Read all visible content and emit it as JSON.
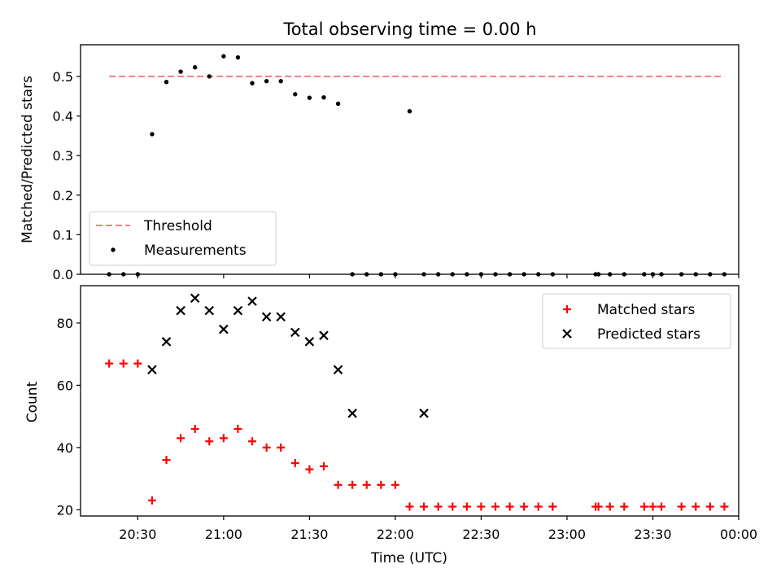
{
  "title": "Total observing time = 0.00 h",
  "chart_data": [
    {
      "type": "scatter",
      "ylabel": "Matched/Predicted stars",
      "xlabel": "",
      "ylim": [
        0,
        0.58
      ],
      "xlim": [
        "20:10",
        "00:00"
      ],
      "yticks": [
        0.0,
        0.1,
        0.2,
        0.3,
        0.4,
        0.5
      ],
      "ytick_labels": [
        "0.0",
        "0.1",
        "0.2",
        "0.3",
        "0.4",
        "0.5"
      ],
      "legend_position": "lower-left",
      "threshold": {
        "name": "Threshold",
        "value": 0.5,
        "x_start": "20:20",
        "x_end": "23:55",
        "color": "#f08080"
      },
      "series": [
        {
          "name": "Measurements",
          "color": "#000000",
          "x": [
            "20:20",
            "20:25",
            "20:30",
            "20:35",
            "20:40",
            "20:45",
            "20:50",
            "20:55",
            "21:00",
            "21:05",
            "21:10",
            "21:15",
            "21:20",
            "21:25",
            "21:30",
            "21:35",
            "21:40",
            "21:45",
            "21:50",
            "21:55",
            "22:00",
            "22:05",
            "22:10",
            "22:15",
            "22:20",
            "22:25",
            "22:30",
            "22:35",
            "22:40",
            "22:45",
            "22:50",
            "22:55",
            "23:10",
            "23:11",
            "23:15",
            "23:20",
            "23:27",
            "23:30",
            "23:33",
            "23:40",
            "23:45",
            "23:50",
            "23:55"
          ],
          "y": [
            0,
            0,
            0,
            0.354,
            0.486,
            0.512,
            0.523,
            0.5,
            0.551,
            0.548,
            0.483,
            0.488,
            0.488,
            0.455,
            0.446,
            0.447,
            0.431,
            0,
            0,
            0,
            0,
            0.412,
            0,
            0,
            0,
            0,
            0,
            0,
            0,
            0,
            0,
            0,
            0,
            0,
            0,
            0,
            0,
            0,
            0,
            0,
            0,
            0,
            0
          ]
        }
      ]
    },
    {
      "type": "scatter",
      "ylabel": "Count",
      "xlabel": "Time (UTC)",
      "ylim": [
        18,
        92
      ],
      "xlim": [
        "20:10",
        "00:00"
      ],
      "yticks": [
        20,
        40,
        60,
        80
      ],
      "ytick_labels": [
        "20",
        "40",
        "60",
        "80"
      ],
      "xticks": [
        "20:30",
        "21:00",
        "21:30",
        "22:00",
        "22:30",
        "23:00",
        "23:30",
        "00:00"
      ],
      "legend_position": "upper-right",
      "series": [
        {
          "name": "Matched stars",
          "marker": "+",
          "color": "#ff0000",
          "x": [
            "20:20",
            "20:25",
            "20:30",
            "20:35",
            "20:40",
            "20:45",
            "20:50",
            "20:55",
            "21:00",
            "21:05",
            "21:10",
            "21:15",
            "21:20",
            "21:25",
            "21:30",
            "21:35",
            "21:40",
            "21:45",
            "21:50",
            "21:55",
            "22:00",
            "22:05",
            "22:10",
            "22:15",
            "22:20",
            "22:25",
            "22:30",
            "22:35",
            "22:40",
            "22:45",
            "22:50",
            "22:55",
            "23:10",
            "23:11",
            "23:15",
            "23:20",
            "23:27",
            "23:30",
            "23:33",
            "23:40",
            "23:45",
            "23:50",
            "23:55"
          ],
          "y": [
            67,
            67,
            67,
            23,
            36,
            43,
            46,
            42,
            43,
            46,
            42,
            40,
            40,
            35,
            33,
            34,
            28,
            28,
            28,
            28,
            28,
            21,
            21,
            21,
            21,
            21,
            21,
            21,
            21,
            21,
            21,
            21,
            21,
            21,
            21,
            21,
            21,
            21,
            21,
            21,
            21,
            21,
            21
          ]
        },
        {
          "name": "Predicted stars",
          "marker": "x",
          "color": "#000000",
          "x": [
            "20:35",
            "20:40",
            "20:45",
            "20:50",
            "20:55",
            "21:00",
            "21:05",
            "21:10",
            "21:15",
            "21:20",
            "21:25",
            "21:30",
            "21:35",
            "21:40",
            "21:45",
            "22:10"
          ],
          "y": [
            65,
            74,
            84,
            88,
            84,
            78,
            84,
            87,
            82,
            82,
            77,
            74,
            76,
            65,
            51,
            51
          ]
        }
      ]
    }
  ]
}
